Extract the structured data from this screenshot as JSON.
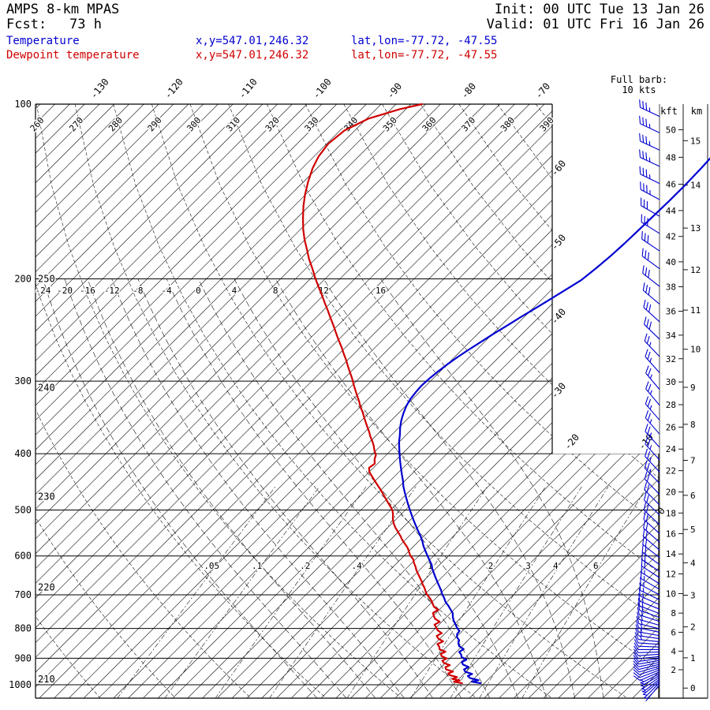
{
  "header": {
    "title": "AMPS 8-km MPAS",
    "fcst_label": "Fcst:",
    "fcst_value": "73 h",
    "init": "Init: 00 UTC Tue 13 Jan 26",
    "valid": "Valid: 01 UTC Fri 16 Jan 26"
  },
  "legend": {
    "temperature": {
      "label": "Temperature",
      "xy": "x,y=547.01,246.32",
      "latlon": "lat,lon=-77.72, -47.55"
    },
    "dewpoint": {
      "label": "Dewpoint temperature",
      "xy": "x,y=547.01,246.32",
      "latlon": "lat,lon=-77.72, -47.55"
    }
  },
  "barb_legend": {
    "line1": "Full barb:",
    "line2": "10 kts"
  },
  "colors": {
    "temperature": "#0000d0",
    "dewpoint": "#d00000",
    "grid": "#000000",
    "wind": "#0000d0"
  },
  "axes": {
    "pressure_ticks": [
      100,
      200,
      300,
      400,
      500,
      600,
      700,
      800,
      900,
      1000
    ],
    "isotherm_top_labels": [
      -130,
      -120,
      -110,
      -100,
      -90,
      -80,
      -70
    ],
    "isotherm_right_labels": [
      -60,
      -50,
      -40,
      -30,
      -20,
      -10,
      0
    ],
    "theta_top_labels": [
      260,
      270,
      280,
      290,
      300,
      310,
      320,
      330,
      340,
      350,
      360,
      370,
      380,
      390
    ],
    "theta_left_labels": [
      {
        "v": 250,
        "p": 200
      },
      {
        "v": 240,
        "p": 308
      },
      {
        "v": 230,
        "p": 474
      },
      {
        "v": 220,
        "p": 680
      },
      {
        "v": 210,
        "p": 978
      }
    ],
    "thetaw_labels": [
      -24,
      -20,
      -16,
      -12,
      -8,
      -4,
      0,
      4,
      8,
      12,
      16
    ],
    "mixing_ratio_labels": [
      {
        "label": ".05",
        "w": 0.05
      },
      {
        "label": ".1",
        "w": 0.1
      },
      {
        "label": ".2",
        "w": 0.2
      },
      {
        "label": ".4",
        "w": 0.4
      },
      {
        "label": "1",
        "w": 1
      },
      {
        "label": "2",
        "w": 2
      },
      {
        "label": "3",
        "w": 3
      },
      {
        "label": "4",
        "w": 4
      },
      {
        "label": "6",
        "w": 6
      }
    ],
    "kft_header": "kft",
    "km_header": "km",
    "kft_ticks": [
      50,
      48,
      46,
      44,
      42,
      40,
      38,
      36,
      34,
      32,
      30,
      28,
      26,
      24,
      22,
      20,
      18,
      16,
      14,
      12,
      10,
      8,
      6,
      4,
      2
    ],
    "km_ticks": [
      15,
      14,
      13,
      12,
      11,
      10,
      9,
      8,
      7,
      6,
      5,
      4,
      3,
      2,
      1,
      0
    ]
  },
  "chart_data": {
    "type": "skewt-log-p",
    "title": "AMPS 8-km MPAS sounding",
    "x_axis": "temperature (degC, skewed 45deg)",
    "y_axis": "pressure (hPa, log scale)",
    "pressure_range_hPa": [
      100,
      1050
    ],
    "temperature_profile": {
      "units": "[hPa, degC]",
      "points": [
        [
          994,
          -0.5
        ],
        [
          988,
          -1.9
        ],
        [
          982,
          -1.2
        ],
        [
          974,
          -2.6
        ],
        [
          966,
          -3.2
        ],
        [
          958,
          -2.9
        ],
        [
          950,
          -4.1
        ],
        [
          941,
          -4.6
        ],
        [
          932,
          -4.3
        ],
        [
          923,
          -5.4
        ],
        [
          914,
          -5.9
        ],
        [
          905,
          -5.6
        ],
        [
          896,
          -6.6
        ],
        [
          887,
          -7.0
        ],
        [
          878,
          -7.6
        ],
        [
          868,
          -7.4
        ],
        [
          858,
          -8.4
        ],
        [
          848,
          -8.9
        ],
        [
          838,
          -9.2
        ],
        [
          828,
          -9.9
        ],
        [
          818,
          -10.3
        ],
        [
          808,
          -10.4
        ],
        [
          797,
          -11.2
        ],
        [
          786,
          -11.9
        ],
        [
          775,
          -12.6
        ],
        [
          764,
          -13.2
        ],
        [
          753,
          -13.7
        ],
        [
          742,
          -14.5
        ],
        [
          731,
          -15.3
        ],
        [
          720,
          -16.2
        ],
        [
          709,
          -16.9
        ],
        [
          698,
          -17.7
        ],
        [
          687,
          -18.4
        ],
        [
          676,
          -19.2
        ],
        [
          665,
          -20.0
        ],
        [
          654,
          -20.8
        ],
        [
          643,
          -21.6
        ],
        [
          632,
          -22.4
        ],
        [
          621,
          -23.1
        ],
        [
          610,
          -24.0
        ],
        [
          599,
          -24.9
        ],
        [
          588,
          -25.8
        ],
        [
          577,
          -26.7
        ],
        [
          566,
          -27.5
        ],
        [
          555,
          -28.4
        ],
        [
          544,
          -29.4
        ],
        [
          533,
          -30.4
        ],
        [
          522,
          -31.4
        ],
        [
          511,
          -32.4
        ],
        [
          500,
          -33.4
        ],
        [
          489,
          -34.4
        ],
        [
          478,
          -35.4
        ],
        [
          467,
          -36.4
        ],
        [
          456,
          -37.4
        ],
        [
          445,
          -38.3
        ],
        [
          434,
          -39.3
        ],
        [
          423,
          -40.3
        ],
        [
          412,
          -41.3
        ],
        [
          401,
          -42.3
        ],
        [
          391,
          -43.2
        ],
        [
          381,
          -44.1
        ],
        [
          371,
          -44.9
        ],
        [
          361,
          -45.8
        ],
        [
          351,
          -46.6
        ],
        [
          341,
          -47.3
        ],
        [
          331,
          -47.9
        ],
        [
          322,
          -48.3
        ],
        [
          313,
          -48.5
        ],
        [
          305,
          -48.6
        ],
        [
          297,
          -48.5
        ],
        [
          289,
          -48.3
        ],
        [
          281,
          -48.0
        ],
        [
          273,
          -47.6
        ],
        [
          265,
          -47.1
        ],
        [
          257,
          -46.5
        ],
        [
          249,
          -45.9
        ],
        [
          241,
          -45.2
        ],
        [
          233,
          -44.5
        ],
        [
          225,
          -43.7
        ],
        [
          217,
          -42.9
        ],
        [
          209,
          -42.1
        ],
        [
          201,
          -41.3
        ],
        [
          192,
          -40.9
        ],
        [
          183,
          -40.6
        ],
        [
          174,
          -40.4
        ],
        [
          165,
          -40.3
        ],
        [
          156,
          -40.2
        ],
        [
          147,
          -40.1
        ],
        [
          138,
          -40.1
        ],
        [
          129,
          -40.2
        ],
        [
          121,
          -40.4
        ]
      ]
    },
    "dewpoint_profile": {
      "units": "[hPa, degC]",
      "points": [
        [
          994,
          -3.0
        ],
        [
          988,
          -4.3
        ],
        [
          983,
          -3.7
        ],
        [
          977,
          -4.9
        ],
        [
          970,
          -4.5
        ],
        [
          963,
          -5.7
        ],
        [
          956,
          -6.2
        ],
        [
          949,
          -5.8
        ],
        [
          941,
          -7.0
        ],
        [
          933,
          -7.4
        ],
        [
          925,
          -7.1
        ],
        [
          917,
          -8.2
        ],
        [
          909,
          -8.7
        ],
        [
          901,
          -8.4
        ],
        [
          893,
          -9.4
        ],
        [
          885,
          -9.8
        ],
        [
          877,
          -9.5
        ],
        [
          869,
          -10.6
        ],
        [
          860,
          -11.0
        ],
        [
          851,
          -11.6
        ],
        [
          842,
          -11.2
        ],
        [
          833,
          -12.2
        ],
        [
          824,
          -12.8
        ],
        [
          815,
          -12.5
        ],
        [
          806,
          -13.4
        ],
        [
          797,
          -14.0
        ],
        [
          788,
          -14.6
        ],
        [
          779,
          -14.3
        ],
        [
          770,
          -15.3
        ],
        [
          761,
          -15.9
        ],
        [
          752,
          -16.4
        ],
        [
          743,
          -16.1
        ],
        [
          734,
          -17.1
        ],
        [
          725,
          -17.7
        ],
        [
          716,
          -18.3
        ],
        [
          707,
          -19.0
        ],
        [
          698,
          -19.8
        ],
        [
          689,
          -20.4
        ],
        [
          680,
          -21.0
        ],
        [
          671,
          -21.7
        ],
        [
          662,
          -22.3
        ],
        [
          653,
          -23.0
        ],
        [
          644,
          -23.7
        ],
        [
          635,
          -24.4
        ],
        [
          626,
          -25.0
        ],
        [
          617,
          -25.7
        ],
        [
          608,
          -26.3
        ],
        [
          599,
          -27.2
        ],
        [
          590,
          -27.9
        ],
        [
          581,
          -28.6
        ],
        [
          572,
          -29.5
        ],
        [
          563,
          -30.4
        ],
        [
          554,
          -31.2
        ],
        [
          545,
          -32.1
        ],
        [
          536,
          -33.0
        ],
        [
          527,
          -33.8
        ],
        [
          518,
          -34.5
        ],
        [
          510,
          -35.0
        ],
        [
          502,
          -35.6
        ],
        [
          494,
          -36.4
        ],
        [
          486,
          -37.3
        ],
        [
          478,
          -38.2
        ],
        [
          470,
          -39.1
        ],
        [
          462,
          -40.0
        ],
        [
          454,
          -41.0
        ],
        [
          446,
          -42.0
        ],
        [
          438,
          -43.0
        ],
        [
          430,
          -44.0
        ],
        [
          423,
          -44.6
        ],
        [
          416,
          -44.4
        ],
        [
          409,
          -45.0
        ],
        [
          402,
          -45.4
        ],
        [
          395,
          -46.2
        ],
        [
          388,
          -46.9
        ],
        [
          381,
          -47.7
        ],
        [
          374,
          -48.6
        ],
        [
          367,
          -49.4
        ],
        [
          360,
          -50.3
        ],
        [
          353,
          -51.2
        ],
        [
          346,
          -52.1
        ],
        [
          339,
          -53.0
        ],
        [
          332,
          -54.0
        ],
        [
          325,
          -54.9
        ],
        [
          318,
          -55.9
        ],
        [
          311,
          -56.9
        ],
        [
          304,
          -57.9
        ],
        [
          297,
          -58.9
        ],
        [
          290,
          -60.0
        ],
        [
          283,
          -61.1
        ],
        [
          276,
          -62.2
        ],
        [
          269,
          -63.4
        ],
        [
          262,
          -64.6
        ],
        [
          255,
          -65.9
        ],
        [
          248,
          -67.2
        ],
        [
          241,
          -68.5
        ],
        [
          234,
          -69.9
        ],
        [
          227,
          -71.3
        ],
        [
          220,
          -72.8
        ],
        [
          213,
          -74.3
        ],
        [
          206,
          -75.9
        ],
        [
          199,
          -77.5
        ],
        [
          192,
          -79.1
        ],
        [
          185,
          -80.8
        ],
        [
          178,
          -82.4
        ],
        [
          171,
          -84.1
        ],
        [
          164,
          -85.7
        ],
        [
          157,
          -87.2
        ],
        [
          150,
          -88.7
        ],
        [
          143,
          -90.1
        ],
        [
          136,
          -91.4
        ],
        [
          129,
          -92.6
        ],
        [
          123,
          -93.4
        ],
        [
          117,
          -93.8
        ],
        [
          111,
          -93.4
        ],
        [
          106,
          -91.8
        ],
        [
          102,
          -88.8
        ],
        [
          100,
          -86.5
        ]
      ]
    },
    "wind_profile": {
      "units": "[hPa, knots, deg_from]",
      "points": [
        [
          1000,
          4,
          220
        ],
        [
          992,
          5,
          225
        ],
        [
          985,
          5,
          230
        ],
        [
          978,
          6,
          232
        ],
        [
          971,
          6,
          236
        ],
        [
          964,
          7,
          240
        ],
        [
          957,
          7,
          243
        ],
        [
          950,
          8,
          246
        ],
        [
          943,
          8,
          249
        ],
        [
          936,
          8,
          252
        ],
        [
          929,
          9,
          254
        ],
        [
          922,
          9,
          256
        ],
        [
          915,
          10,
          258
        ],
        [
          908,
          10,
          260
        ],
        [
          901,
          10,
          262
        ],
        [
          894,
          11,
          264
        ],
        [
          886,
          11,
          266
        ],
        [
          878,
          11,
          268
        ],
        [
          870,
          12,
          270
        ],
        [
          861,
          12,
          272
        ],
        [
          852,
          12,
          274
        ],
        [
          843,
          13,
          276
        ],
        [
          833,
          13,
          278
        ],
        [
          823,
          13,
          280
        ],
        [
          812,
          14,
          282
        ],
        [
          801,
          14,
          284
        ],
        [
          790,
          14,
          286
        ],
        [
          778,
          15,
          288
        ],
        [
          766,
          15,
          290
        ],
        [
          754,
          15,
          291
        ],
        [
          741,
          16,
          292
        ],
        [
          728,
          16,
          294
        ],
        [
          714,
          16,
          296
        ],
        [
          700,
          17,
          298
        ],
        [
          685,
          17,
          300
        ],
        [
          670,
          17,
          302
        ],
        [
          654,
          18,
          303
        ],
        [
          638,
          18,
          304
        ],
        [
          621,
          18,
          306
        ],
        [
          604,
          19,
          308
        ],
        [
          586,
          19,
          310
        ],
        [
          568,
          20,
          311
        ],
        [
          549,
          20,
          312
        ],
        [
          530,
          21,
          313
        ],
        [
          510,
          21,
          314
        ],
        [
          490,
          22,
          315
        ],
        [
          470,
          22,
          316
        ],
        [
          450,
          23,
          316
        ],
        [
          430,
          23,
          317
        ],
        [
          410,
          24,
          318
        ],
        [
          390,
          24,
          318
        ],
        [
          370,
          25,
          319
        ],
        [
          350,
          25,
          319
        ],
        [
          330,
          26,
          320
        ],
        [
          310,
          26,
          320
        ],
        [
          290,
          27,
          318
        ],
        [
          272,
          27,
          316
        ],
        [
          254,
          28,
          314
        ],
        [
          237,
          28,
          312
        ],
        [
          221,
          29,
          310
        ],
        [
          206,
          29,
          308
        ],
        [
          192,
          30,
          306
        ],
        [
          179,
          30,
          304
        ],
        [
          167,
          31,
          302
        ],
        [
          156,
          32,
          300
        ],
        [
          146,
          33,
          298
        ],
        [
          137,
          33,
          296
        ],
        [
          128,
          34,
          295
        ],
        [
          120,
          34,
          295
        ],
        [
          112,
          35,
          295
        ],
        [
          105,
          35,
          295
        ]
      ]
    }
  }
}
